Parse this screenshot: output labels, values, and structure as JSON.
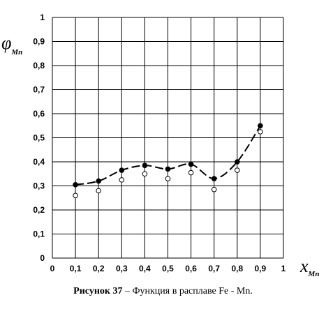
{
  "chart_data": {
    "type": "line",
    "xlabel_symbol": "x",
    "xlabel_subscript": "Mn",
    "ylabel_symbol": "φ",
    "ylabel_subscript": "Mn",
    "xlim": [
      0,
      1
    ],
    "ylim": [
      0,
      1
    ],
    "x_ticks": [
      "0",
      "0,1",
      "0,2",
      "0,3",
      "0,4",
      "0,5",
      "0,6",
      "0,7",
      "0,8",
      "0,9",
      "1"
    ],
    "y_ticks": [
      "0",
      "0,1",
      "0,2",
      "0,3",
      "0,4",
      "0,5",
      "0,6",
      "0,7",
      "0,8",
      "0,9",
      "1"
    ],
    "grid": true,
    "series": [
      {
        "marker": "filled-circle",
        "line": "dashed",
        "x": [
          0.1,
          0.2,
          0.3,
          0.4,
          0.5,
          0.6,
          0.7,
          0.8,
          0.9
        ],
        "values": [
          0.305,
          0.32,
          0.365,
          0.385,
          0.37,
          0.39,
          0.33,
          0.4,
          0.55
        ]
      },
      {
        "marker": "open-circle",
        "line": "none",
        "x": [
          0.1,
          0.2,
          0.3,
          0.4,
          0.5,
          0.6,
          0.7,
          0.8,
          0.9
        ],
        "values": [
          0.26,
          0.28,
          0.325,
          0.35,
          0.33,
          0.355,
          0.285,
          0.365,
          0.525
        ]
      }
    ]
  },
  "caption": {
    "label": "Рисунок 37",
    "text": " – Функция  в расплаве Fe - Mn."
  }
}
